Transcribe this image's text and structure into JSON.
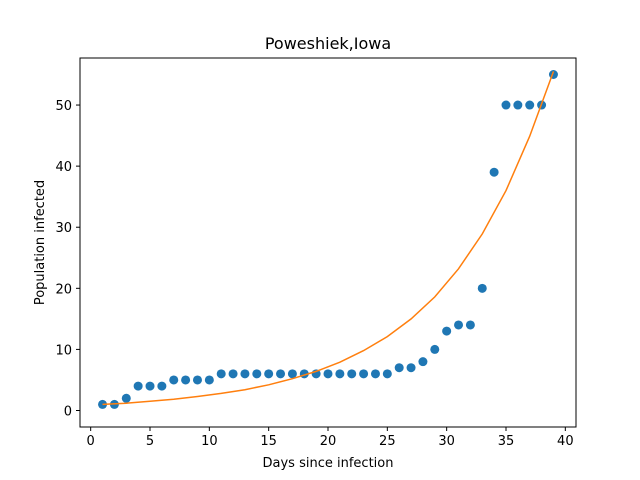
{
  "chart_data": {
    "type": "scatter",
    "title": "Poweshiek,Iowa",
    "xlabel": "Days since infection",
    "ylabel": "Population infected",
    "xlim": [
      -0.9,
      40.9
    ],
    "ylim": [
      -2.7,
      57.7
    ],
    "xticks": [
      0,
      5,
      10,
      15,
      20,
      25,
      30,
      35,
      40
    ],
    "yticks": [
      0,
      10,
      20,
      30,
      40,
      50
    ],
    "grid": false,
    "series": [
      {
        "kind": "scatter",
        "color": "#1f77b4",
        "x": [
          1,
          2,
          3,
          4,
          5,
          6,
          7,
          8,
          9,
          10,
          11,
          12,
          13,
          14,
          15,
          16,
          17,
          18,
          19,
          20,
          21,
          22,
          23,
          24,
          25,
          26,
          27,
          28,
          29,
          30,
          31,
          32,
          33,
          34,
          35,
          36,
          37,
          38,
          39
        ],
        "y": [
          1,
          1,
          2,
          4,
          4,
          4,
          5,
          5,
          5,
          5,
          6,
          6,
          6,
          6,
          6,
          6,
          6,
          6,
          6,
          6,
          6,
          6,
          6,
          6,
          6,
          7,
          7,
          8,
          10,
          13,
          14,
          14,
          20,
          39,
          50,
          50,
          50,
          50,
          55
        ]
      },
      {
        "kind": "line",
        "color": "#ff7f0e",
        "x": [
          1,
          3,
          5,
          7,
          9,
          11,
          13,
          15,
          17,
          19,
          21,
          23,
          25,
          27,
          29,
          31,
          33,
          35,
          37,
          39
        ],
        "y": [
          1.0,
          1.2,
          1.5,
          1.85,
          2.3,
          2.8,
          3.4,
          4.2,
          5.2,
          6.4,
          7.9,
          9.8,
          12.1,
          15.0,
          18.6,
          23.2,
          28.9,
          36.0,
          44.9,
          55.5
        ]
      }
    ]
  }
}
